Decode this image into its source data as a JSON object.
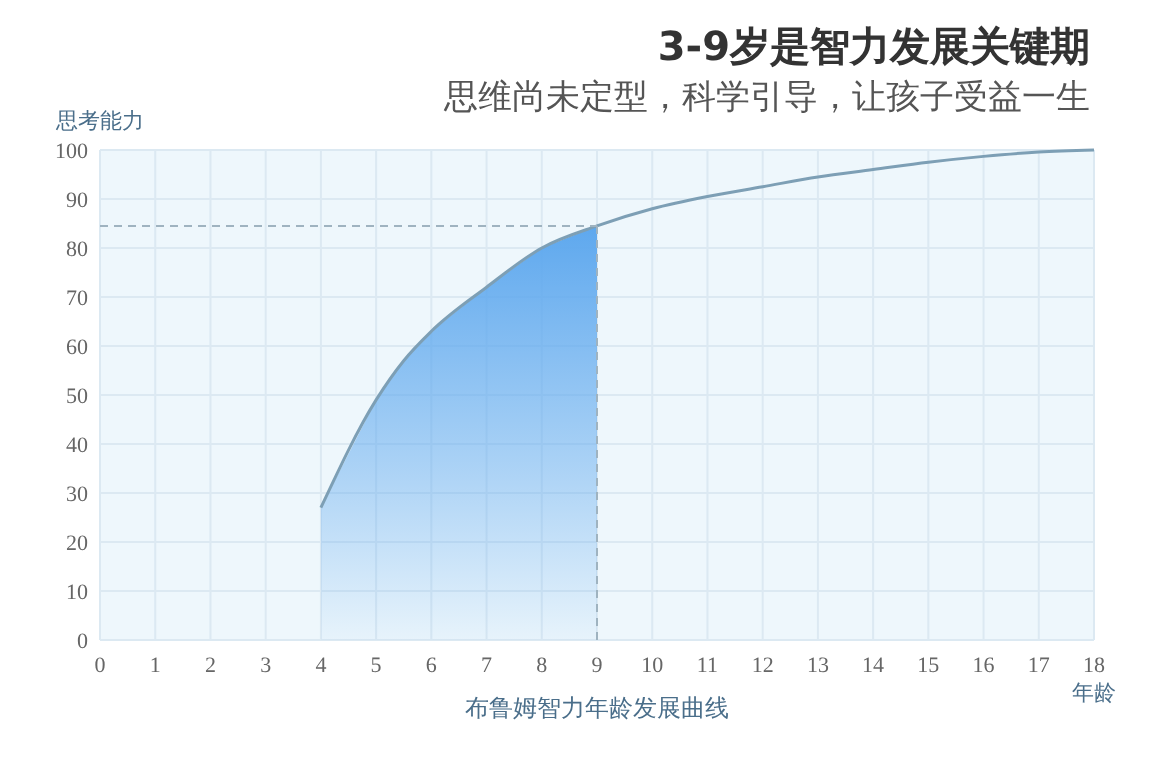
{
  "chart_data": {
    "type": "line",
    "title": "3-9岁是智力发展关键期",
    "subtitle": "思维尚未定型，科学引导，让孩子受益一生",
    "ylabel": "思考能力",
    "xlabel": "年龄",
    "annotations": [
      "布鲁姆智力年龄发展曲线"
    ],
    "series": [
      {
        "type": "area",
        "color": "#5ea8ee",
        "x": [
          4,
          5,
          5.5,
          6,
          7,
          8,
          9
        ],
        "values": [
          27,
          49,
          57,
          63,
          72,
          80,
          84.5
        ]
      },
      {
        "color": "#7d9fb5",
        "x": [
          4,
          5,
          5.5,
          6,
          7,
          8,
          9,
          10,
          11,
          12,
          13,
          14,
          15,
          16,
          17,
          18
        ],
        "values": [
          27,
          49,
          57,
          63,
          72,
          80,
          84.5,
          88,
          90.5,
          92.5,
          94.5,
          96,
          97.5,
          98.7,
          99.6,
          100
        ]
      }
    ],
    "xlim": [
      0,
      18
    ],
    "xticks": [
      0,
      1,
      2,
      3,
      4,
      5,
      6,
      7,
      8,
      9,
      10,
      11,
      12,
      13,
      14,
      15,
      16,
      17,
      18
    ],
    "ylim": [
      0,
      100
    ],
    "yticks": [
      0,
      10,
      20,
      30,
      40,
      50,
      60,
      70,
      80,
      90,
      100
    ],
    "ref_lines": [
      {
        "axis": "y",
        "value": 84.5,
        "color": "#9fb3c0",
        "line_style": "dashed"
      },
      {
        "axis": "x",
        "value": 9,
        "color": "#9fb3c0",
        "line_style": "dashed"
      }
    ],
    "grid": true
  }
}
